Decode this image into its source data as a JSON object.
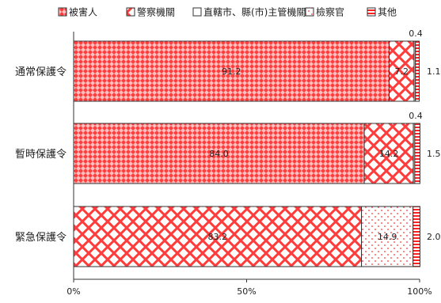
{
  "chart_data": {
    "type": "bar",
    "orientation": "horizontal",
    "stacked": true,
    "categories": [
      "通常保護令",
      "暫時保護令",
      "緊急保護令"
    ],
    "series": [
      {
        "name": "被害人",
        "values": [
          91.2,
          84.0,
          0
        ],
        "pattern": "small-checker"
      },
      {
        "name": "警察機關",
        "values": [
          7.2,
          14.2,
          83.2
        ],
        "pattern": "diagonal-crosshatch"
      },
      {
        "name": "直轄市、縣(市)主管機關",
        "values": [
          0.4,
          0.4,
          0
        ],
        "pattern": "plain"
      },
      {
        "name": "檢察官",
        "values": [
          0,
          0,
          14.9
        ],
        "pattern": "dots"
      },
      {
        "name": "其他",
        "values": [
          1.1,
          1.5,
          2.0
        ],
        "pattern": "horizontal-stripes"
      }
    ],
    "data_labels": [
      [
        {
          "series": 0,
          "text": "91.2",
          "position": "inside"
        },
        {
          "series": 1,
          "text": "7.2",
          "position": "inside"
        },
        {
          "series": 2,
          "text": "0.4",
          "position": "above"
        },
        {
          "series": 4,
          "text": "1.1",
          "position": "right"
        }
      ],
      [
        {
          "series": 0,
          "text": "84.0",
          "position": "inside"
        },
        {
          "series": 1,
          "text": "14.2",
          "position": "inside"
        },
        {
          "series": 2,
          "text": "0.4",
          "position": "above"
        },
        {
          "series": 4,
          "text": "1.5",
          "position": "right"
        }
      ],
      [
        {
          "series": 1,
          "text": "83.2",
          "position": "inside"
        },
        {
          "series": 3,
          "text": "14.9",
          "position": "inside"
        },
        {
          "series": 4,
          "text": "2.0",
          "position": "right"
        }
      ]
    ],
    "x_ticks": [
      "0%",
      "50%",
      "100%"
    ],
    "xlim": [
      0,
      100
    ],
    "legend_position": "top",
    "grid": false,
    "colors": {
      "accent": "#ff2e2e",
      "border": "#333333",
      "background": "#ffffff"
    }
  }
}
